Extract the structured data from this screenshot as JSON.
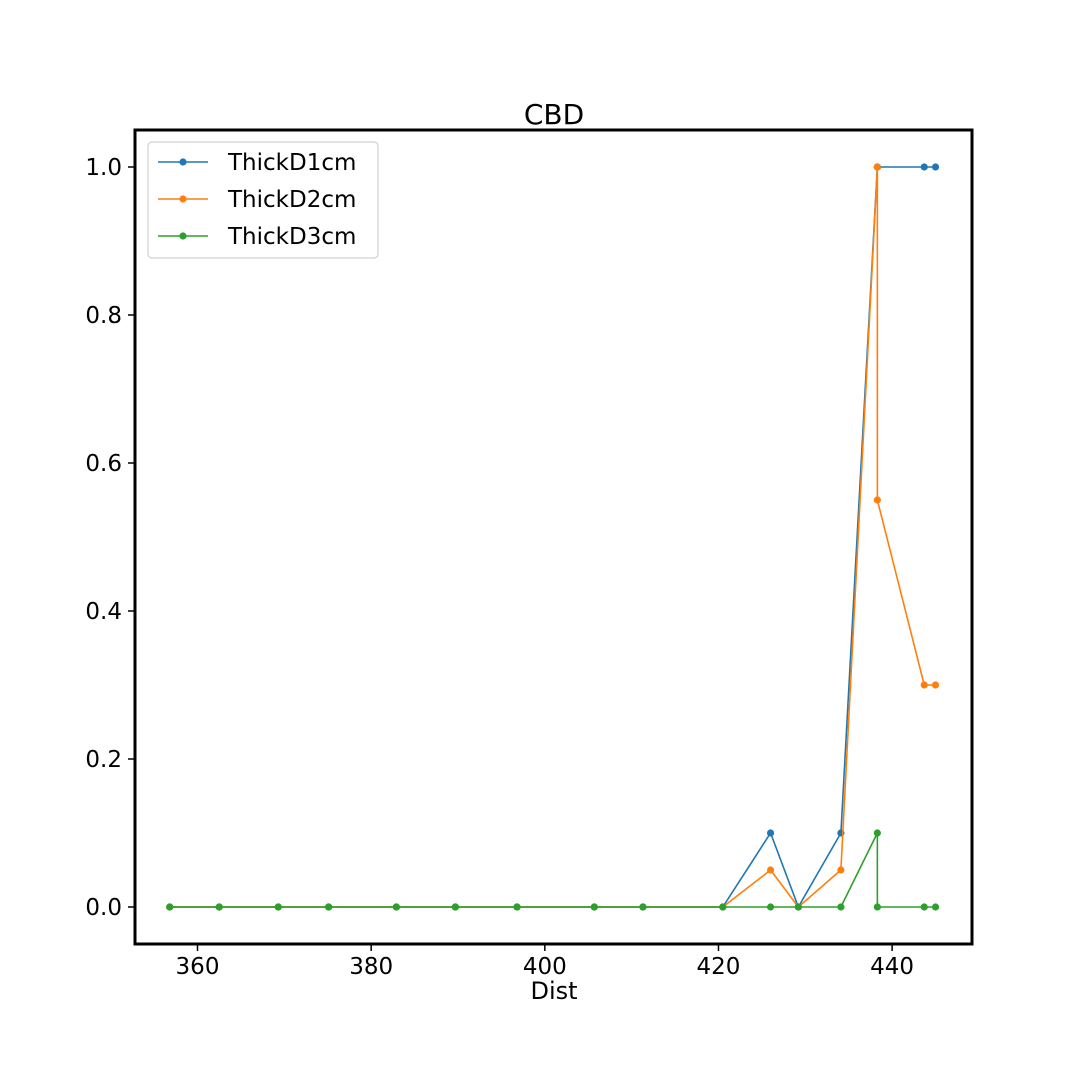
{
  "chart_data": {
    "type": "line",
    "title": "CBD",
    "xlabel": "Dist",
    "ylabel": "",
    "xlim": [
      352.8,
      449.2
    ],
    "ylim": [
      -0.05,
      1.05
    ],
    "xticks": [
      360,
      380,
      400,
      420,
      440
    ],
    "yticks": [
      0.0,
      0.2,
      0.4,
      0.6,
      0.8,
      1.0
    ],
    "xtick_labels": [
      "360",
      "380",
      "400",
      "420",
      "440"
    ],
    "ytick_labels": [
      "0.0",
      "0.2",
      "0.4",
      "0.6",
      "0.8",
      "1.0"
    ],
    "grid": false,
    "legend_position": "top-left",
    "x": [
      356.8,
      362.5,
      369.3,
      375.1,
      382.9,
      389.7,
      396.8,
      405.7,
      411.3,
      420.5,
      426.0,
      429.2,
      434.1,
      438.3,
      438.3,
      443.7,
      445.0
    ],
    "series": [
      {
        "name": "ThickD1cm",
        "color": "#1f77b4",
        "values": [
          0,
          0,
          0,
          0,
          0,
          0,
          0,
          0,
          0,
          0,
          0.1,
          0,
          0.1,
          1.0,
          1.0,
          1.0,
          1.0
        ]
      },
      {
        "name": "ThickD2cm",
        "color": "#ff7f0e",
        "values": [
          0,
          0,
          0,
          0,
          0,
          0,
          0,
          0,
          0,
          0,
          0.05,
          0,
          0.05,
          1.0,
          0.55,
          0.3,
          0.3
        ]
      },
      {
        "name": "ThickD3cm",
        "color": "#2ca02c",
        "values": [
          0,
          0,
          0,
          0,
          0,
          0,
          0,
          0,
          0,
          0,
          0,
          0,
          0,
          0.1,
          0,
          0,
          0
        ]
      }
    ]
  }
}
